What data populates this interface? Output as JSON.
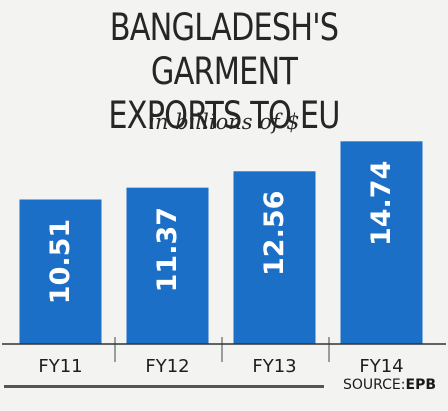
{
  "chart_data": {
    "type": "bar",
    "title": "BANGLADESH'S GARMENT EXPORTS TO EU",
    "title_lines": [
      "BANGLADESH'S GARMENT",
      "EXPORTS TO EU"
    ],
    "subtitle": "in billions of $",
    "categories": [
      "FY11",
      "FY12",
      "FY13",
      "FY14"
    ],
    "values": [
      10.51,
      11.37,
      12.56,
      14.74
    ],
    "data_labels": [
      "10.51",
      "11.37",
      "12.56",
      "14.74"
    ],
    "bar_color": "#1b6fc6",
    "grid": false,
    "legend": "none"
  },
  "source": {
    "label": "SOURCE:",
    "name": "EPB"
  }
}
